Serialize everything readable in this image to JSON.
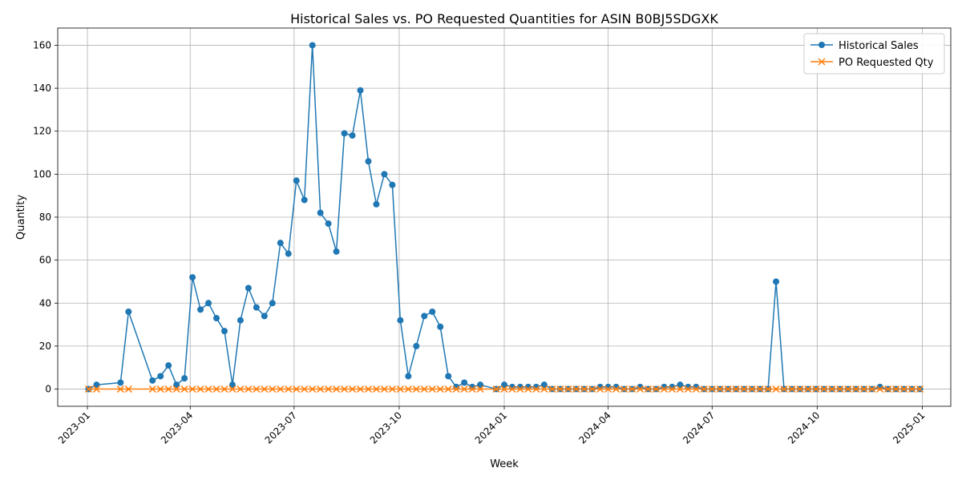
{
  "chart_data": {
    "type": "line",
    "title": "Historical Sales vs. PO Requested Quantities for ASIN B0BJ5SDGXK",
    "xlabel": "Week",
    "ylabel": "Quantity",
    "xlim": [
      "2022-12-06",
      "2025-01-26"
    ],
    "ylim": [
      -8,
      168
    ],
    "grid": true,
    "legend_position": "top-right",
    "x_ticks": [
      {
        "date": "2023-01-01",
        "label": "2023-01"
      },
      {
        "date": "2023-04-01",
        "label": "2023-04"
      },
      {
        "date": "2023-07-01",
        "label": "2023-07"
      },
      {
        "date": "2023-10-01",
        "label": "2023-10"
      },
      {
        "date": "2024-01-01",
        "label": "2024-01"
      },
      {
        "date": "2024-04-01",
        "label": "2024-04"
      },
      {
        "date": "2024-07-01",
        "label": "2024-07"
      },
      {
        "date": "2024-10-01",
        "label": "2024-10"
      },
      {
        "date": "2025-01-01",
        "label": "2025-01"
      }
    ],
    "y_ticks": [
      0,
      20,
      40,
      60,
      80,
      100,
      120,
      140,
      160
    ],
    "series": [
      {
        "name": "Historical Sales",
        "color": "#1f77b4",
        "marker": "circle",
        "x": [
          "2023-01-02",
          "2023-01-09",
          "2023-01-30",
          "2023-02-06",
          "2023-02-27",
          "2023-03-06",
          "2023-03-13",
          "2023-03-20",
          "2023-03-27",
          "2023-04-03",
          "2023-04-10",
          "2023-04-17",
          "2023-04-24",
          "2023-05-01",
          "2023-05-08",
          "2023-05-15",
          "2023-05-22",
          "2023-05-29",
          "2023-06-05",
          "2023-06-12",
          "2023-06-19",
          "2023-06-26",
          "2023-07-03",
          "2023-07-10",
          "2023-07-17",
          "2023-07-24",
          "2023-07-31",
          "2023-08-07",
          "2023-08-14",
          "2023-08-21",
          "2023-08-28",
          "2023-09-04",
          "2023-09-11",
          "2023-09-18",
          "2023-09-25",
          "2023-10-02",
          "2023-10-09",
          "2023-10-16",
          "2023-10-23",
          "2023-10-30",
          "2023-11-06",
          "2023-11-13",
          "2023-11-20",
          "2023-11-27",
          "2023-12-04",
          "2023-12-11",
          "2023-12-25",
          "2024-01-01",
          "2024-01-08",
          "2024-01-15",
          "2024-01-22",
          "2024-01-29",
          "2024-02-05",
          "2024-02-12",
          "2024-02-19",
          "2024-02-26",
          "2024-03-04",
          "2024-03-11",
          "2024-03-18",
          "2024-03-25",
          "2024-04-01",
          "2024-04-08",
          "2024-04-15",
          "2024-04-22",
          "2024-04-29",
          "2024-05-06",
          "2024-05-13",
          "2024-05-20",
          "2024-05-27",
          "2024-06-03",
          "2024-06-10",
          "2024-06-17",
          "2024-06-24",
          "2024-07-01",
          "2024-07-08",
          "2024-07-15",
          "2024-07-22",
          "2024-07-29",
          "2024-08-05",
          "2024-08-12",
          "2024-08-19",
          "2024-08-26",
          "2024-09-02",
          "2024-09-09",
          "2024-09-16",
          "2024-09-23",
          "2024-09-30",
          "2024-10-07",
          "2024-10-14",
          "2024-10-21",
          "2024-10-28",
          "2024-11-04",
          "2024-11-11",
          "2024-11-18",
          "2024-11-25",
          "2024-12-02",
          "2024-12-09",
          "2024-12-16",
          "2024-12-23",
          "2024-12-30"
        ],
        "values": [
          0,
          2,
          3,
          36,
          4,
          6,
          11,
          2,
          5,
          52,
          37,
          40,
          33,
          27,
          2,
          32,
          47,
          38,
          34,
          40,
          68,
          63,
          97,
          88,
          160,
          82,
          77,
          64,
          119,
          118,
          139,
          106,
          86,
          100,
          95,
          32,
          6,
          20,
          34,
          36,
          29,
          6,
          1,
          3,
          1,
          2,
          0,
          2,
          1,
          1,
          1,
          1,
          2,
          0,
          0,
          0,
          0,
          0,
          0,
          1,
          1,
          1,
          0,
          0,
          1,
          0,
          0,
          1,
          1,
          2,
          1,
          1,
          0,
          0,
          0,
          0,
          0,
          0,
          0,
          0,
          0,
          50,
          0,
          0,
          0,
          0,
          0,
          0,
          0,
          0,
          0,
          0,
          0,
          0,
          1,
          0,
          0,
          0,
          0,
          0
        ]
      },
      {
        "name": "PO Requested Qty",
        "color": "#ff7f0e",
        "marker": "x",
        "x": [
          "2023-01-02",
          "2023-01-09",
          "2023-01-30",
          "2023-02-06",
          "2023-02-27",
          "2023-03-06",
          "2023-03-13",
          "2023-03-20",
          "2023-03-27",
          "2023-04-03",
          "2023-04-10",
          "2023-04-17",
          "2023-04-24",
          "2023-05-01",
          "2023-05-08",
          "2023-05-15",
          "2023-05-22",
          "2023-05-29",
          "2023-06-05",
          "2023-06-12",
          "2023-06-19",
          "2023-06-26",
          "2023-07-03",
          "2023-07-10",
          "2023-07-17",
          "2023-07-24",
          "2023-07-31",
          "2023-08-07",
          "2023-08-14",
          "2023-08-21",
          "2023-08-28",
          "2023-09-04",
          "2023-09-11",
          "2023-09-18",
          "2023-09-25",
          "2023-10-02",
          "2023-10-09",
          "2023-10-16",
          "2023-10-23",
          "2023-10-30",
          "2023-11-06",
          "2023-11-13",
          "2023-11-20",
          "2023-11-27",
          "2023-12-04",
          "2023-12-11",
          "2023-12-25",
          "2024-01-01",
          "2024-01-08",
          "2024-01-15",
          "2024-01-22",
          "2024-01-29",
          "2024-02-05",
          "2024-02-12",
          "2024-02-19",
          "2024-02-26",
          "2024-03-04",
          "2024-03-11",
          "2024-03-18",
          "2024-03-25",
          "2024-04-01",
          "2024-04-08",
          "2024-04-15",
          "2024-04-22",
          "2024-04-29",
          "2024-05-06",
          "2024-05-13",
          "2024-05-20",
          "2024-05-27",
          "2024-06-03",
          "2024-06-10",
          "2024-06-17",
          "2024-06-24",
          "2024-07-01",
          "2024-07-08",
          "2024-07-15",
          "2024-07-22",
          "2024-07-29",
          "2024-08-05",
          "2024-08-12",
          "2024-08-19",
          "2024-08-26",
          "2024-09-02",
          "2024-09-09",
          "2024-09-16",
          "2024-09-23",
          "2024-09-30",
          "2024-10-07",
          "2024-10-14",
          "2024-10-21",
          "2024-10-28",
          "2024-11-04",
          "2024-11-11",
          "2024-11-18",
          "2024-11-25",
          "2024-12-02",
          "2024-12-09",
          "2024-12-16",
          "2024-12-23",
          "2024-12-30"
        ],
        "values": [
          0,
          0,
          0,
          0,
          0,
          0,
          0,
          0,
          0,
          0,
          0,
          0,
          0,
          0,
          0,
          0,
          0,
          0,
          0,
          0,
          0,
          0,
          0,
          0,
          0,
          0,
          0,
          0,
          0,
          0,
          0,
          0,
          0,
          0,
          0,
          0,
          0,
          0,
          0,
          0,
          0,
          0,
          0,
          0,
          0,
          0,
          0,
          0,
          0,
          0,
          0,
          0,
          0,
          0,
          0,
          0,
          0,
          0,
          0,
          0,
          0,
          0,
          0,
          0,
          0,
          0,
          0,
          0,
          0,
          0,
          0,
          0,
          0,
          0,
          0,
          0,
          0,
          0,
          0,
          0,
          0,
          0,
          0,
          0,
          0,
          0,
          0,
          0,
          0,
          0,
          0,
          0,
          0,
          0,
          0,
          0,
          0,
          0,
          0,
          0
        ]
      }
    ]
  }
}
